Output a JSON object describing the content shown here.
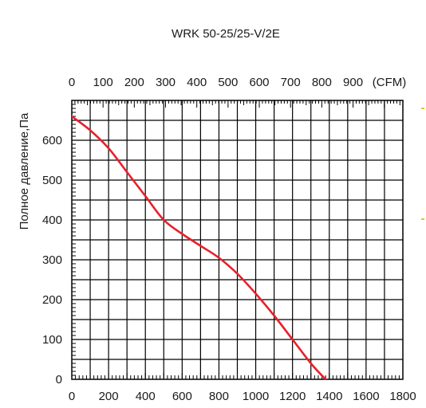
{
  "chart_data": {
    "type": "line",
    "title": "WRK 50-25/25-V/2E",
    "ylabel": "Полное давление,Па",
    "xlim": [
      0,
      1800
    ],
    "ylim": [
      0,
      700
    ],
    "x_ticks": [
      "0",
      "200",
      "400",
      "600",
      "800",
      "1000",
      "1200",
      "1400",
      "1600",
      "1800"
    ],
    "y_ticks": [
      "0",
      "100",
      "200",
      "300",
      "400",
      "500",
      "600"
    ],
    "top_axis": {
      "unit_label": "(CFM)",
      "ticks": [
        "0",
        "100",
        "200",
        "300",
        "400",
        "500",
        "600",
        "700",
        "800",
        "900"
      ]
    },
    "grid": true,
    "line_color": "#e8202a",
    "series": [
      {
        "x": [
          0,
          100,
          200,
          300,
          400,
          500,
          600,
          700,
          800,
          900,
          1000,
          1100,
          1200,
          1300,
          1380,
          1430
        ],
        "values": [
          660,
          625,
          580,
          520,
          460,
          400,
          365,
          335,
          305,
          265,
          215,
          160,
          100,
          40,
          0,
          -20
        ]
      }
    ]
  }
}
